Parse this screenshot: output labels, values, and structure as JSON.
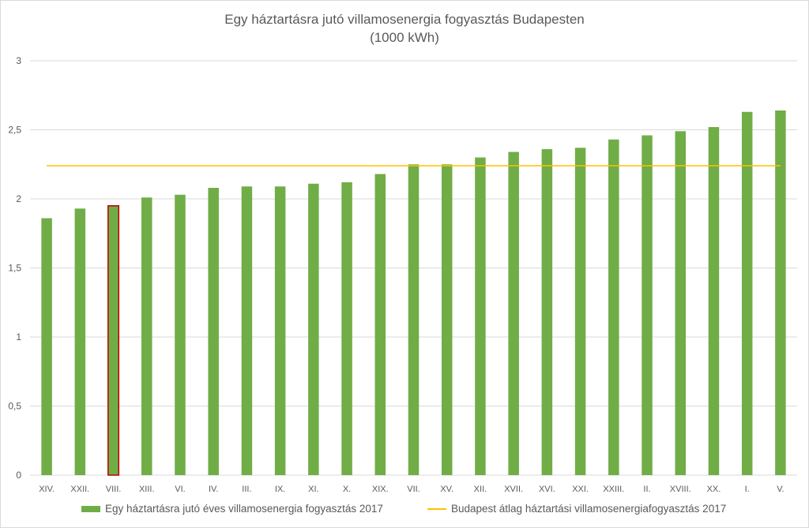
{
  "chart_data": {
    "type": "bar",
    "title": "Egy háztartásra jutó villamosenergia fogyasztás Budapesten",
    "subtitle": "(1000 kWh)",
    "categories": [
      "XIV.",
      "XXII.",
      "VIII.",
      "XIII.",
      "VI.",
      "IV.",
      "III.",
      "IX.",
      "XI.",
      "X.",
      "XIX.",
      "VII.",
      "XV.",
      "XII.",
      "XVII.",
      "XVI.",
      "XXI.",
      "XXIII.",
      "II.",
      "XVIII.",
      "XX.",
      "I.",
      "V."
    ],
    "series": [
      {
        "name": "Egy háztartásra jutó éves villamosenergia fogyasztás 2017",
        "type": "bar",
        "color": "#70ad47",
        "values": [
          1.86,
          1.93,
          1.95,
          2.01,
          2.03,
          2.08,
          2.09,
          2.09,
          2.11,
          2.12,
          2.18,
          2.25,
          2.25,
          2.3,
          2.34,
          2.36,
          2.37,
          2.43,
          2.46,
          2.49,
          2.52,
          2.63,
          2.64
        ]
      },
      {
        "name": "Budapest átlag háztartási villamosenergiafogyasztás 2017",
        "type": "line",
        "color": "#ffc000",
        "value": 2.24
      }
    ],
    "highlight": {
      "category": "VIII.",
      "border_color": "#c00000"
    },
    "yticks": [
      "0",
      "0,5",
      "1",
      "1,5",
      "2",
      "2,5",
      "3"
    ],
    "ylim": [
      0,
      3
    ],
    "grid": true,
    "legend_position": "bottom"
  }
}
